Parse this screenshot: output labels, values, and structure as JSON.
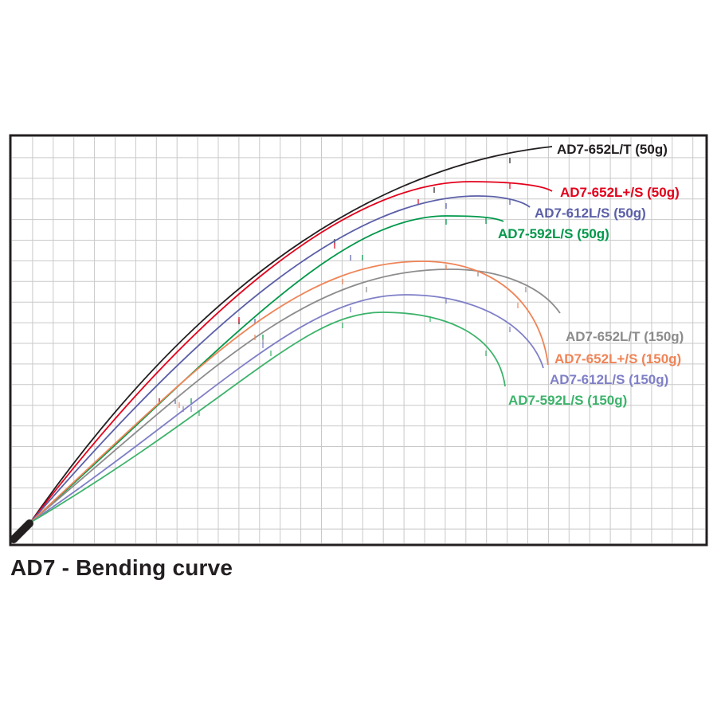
{
  "chart_data": {
    "type": "line",
    "title": "AD7 - Bending curve",
    "xlabel": "",
    "ylabel": "",
    "grid": true,
    "legend": "labels at curve tips",
    "series": [
      {
        "name": "AD7-652L/T (50g)",
        "color": "#231f20",
        "tip": [
          693,
          184
        ]
      },
      {
        "name": "AD7-652L+/S (50g)",
        "color": "#e3001b",
        "tip": [
          693,
          240
        ]
      },
      {
        "name": "AD7-612L/S (50g)",
        "color": "#5b5fa8",
        "tip": [
          665,
          260
        ]
      },
      {
        "name": "AD7-592L/S (50g)",
        "color": "#00984a",
        "tip": [
          632,
          278
        ]
      },
      {
        "name": "AD7-652L/T (150g)",
        "color": "#8c8c8c",
        "tip": [
          703,
          393
        ]
      },
      {
        "name": "AD7-652L+/S (150g)",
        "color": "#ef8457",
        "tip": [
          688,
          458
        ]
      },
      {
        "name": "AD7-612L/S (150g)",
        "color": "#7f7fc7",
        "tip": [
          682,
          462
        ]
      },
      {
        "name": "AD7-592L/S (150g)",
        "color": "#3db36b",
        "tip": [
          634,
          485
        ]
      }
    ]
  }
}
